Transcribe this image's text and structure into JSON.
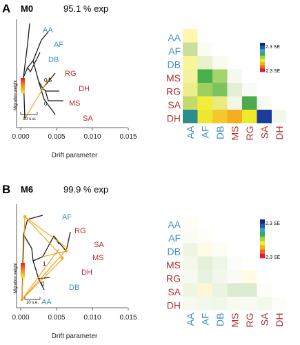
{
  "colors": {
    "pop_blue": "#3f8fbf",
    "pop_red": "#b32d2d",
    "tree": "#1a1a1a",
    "migration": "#f5a51a",
    "axis": "#222222"
  },
  "scale": [
    "#0b2a8a",
    "#1f5fa8",
    "#3b9fd1",
    "#33b24a",
    "#9ed24a",
    "#f2ea2a",
    "#f5b021",
    "#ef6a1f",
    "#e51e21"
  ],
  "panel_a": {
    "letter": "A",
    "model": "M0",
    "variance": "95.1 % exp",
    "xaxis": {
      "ticks": [
        "0.000",
        "0.005",
        "0.010",
        "0.015"
      ],
      "label": "Drift parameter"
    },
    "se_label": "10 s.e.",
    "weight_label": "Migration weight",
    "weight_value": "0.5",
    "weight_zero": "0",
    "tips": [
      {
        "name": "AA",
        "group": "blue"
      },
      {
        "name": "AF",
        "group": "blue"
      },
      {
        "name": "DB",
        "group": "blue"
      },
      {
        "name": "RG",
        "group": "red"
      },
      {
        "name": "DH",
        "group": "red"
      },
      {
        "name": "MS",
        "group": "red"
      },
      {
        "name": "SA",
        "group": "red"
      }
    ],
    "matrix": {
      "rows": [
        "AA",
        "AF",
        "DB",
        "MS",
        "RG",
        "SA",
        "DH"
      ],
      "cols": [
        "AA",
        "AF",
        "DB",
        "MS",
        "RG",
        "SA",
        "DH"
      ],
      "row_groups": [
        "blue",
        "blue",
        "blue",
        "red",
        "red",
        "red",
        "red"
      ],
      "col_groups": [
        "blue",
        "blue",
        "blue",
        "red",
        "red",
        "red",
        "red"
      ],
      "cells": [
        [
          "#fff6b0",
          null,
          null,
          null,
          null,
          null,
          null
        ],
        [
          "#c8e09a",
          "#fafdf2",
          null,
          null,
          null,
          null,
          null
        ],
        [
          "#fbf59a",
          "#e8f2cc",
          "#f8fbee",
          null,
          null,
          null,
          null
        ],
        [
          "#f4f29a",
          "#46b14b",
          "#a6d36d",
          "#f5faef",
          null,
          null,
          null
        ],
        [
          "#ecee8c",
          "#9fcf5e",
          "#7cc45c",
          "#e2efd5",
          "#f8fbf3",
          null,
          null
        ],
        [
          "#c4db6c",
          "#f2ec3a",
          "#eaeb7c",
          "#f3f7e7",
          "#4eab4c",
          "#f7fbef",
          null
        ],
        [
          "#2a8f8c",
          "#f0e531",
          "#f6c82a",
          "#f4ae1f",
          "#eee92a",
          "#1d3b9a",
          "#f4f8ec"
        ]
      ],
      "legend_top": "2.3 SE",
      "legend_bottom": "-2.3 SE"
    }
  },
  "panel_b": {
    "letter": "B",
    "model": "M6",
    "variance": "99.9 % exp",
    "xaxis": {
      "ticks": [
        "0.000",
        "0.005",
        "0.010",
        "0.015"
      ],
      "label": "Drift parameter"
    },
    "se_label": "10 s.e.",
    "weight_label": "Migration weight",
    "weight_value": "1",
    "weight_zero": "0",
    "tips": [
      {
        "name": "AF",
        "group": "blue"
      },
      {
        "name": "RG",
        "group": "red"
      },
      {
        "name": "SA",
        "group": "red"
      },
      {
        "name": "MS",
        "group": "red"
      },
      {
        "name": "DH",
        "group": "red"
      },
      {
        "name": "DB",
        "group": "blue"
      },
      {
        "name": "AA",
        "group": "blue"
      }
    ],
    "matrix": {
      "rows": [
        "AA",
        "AF",
        "DB",
        "MS",
        "RG",
        "SA",
        "DH"
      ],
      "cols": [
        "AA",
        "AF",
        "DB",
        "MS",
        "RG",
        "SA",
        "DH"
      ],
      "row_groups": [
        "blue",
        "blue",
        "blue",
        "red",
        "red",
        "red",
        "red"
      ],
      "col_groups": [
        "blue",
        "blue",
        "blue",
        "red",
        "red",
        "red",
        "red"
      ],
      "cells": [
        [
          "#fefef6",
          null,
          null,
          null,
          null,
          null,
          null
        ],
        [
          "#fbfdf5",
          "#fefef8",
          null,
          null,
          null,
          null,
          null
        ],
        [
          "#eef6e2",
          "#fffbe6",
          "#fcfdf6",
          null,
          null,
          null,
          null
        ],
        [
          "#f3f8ea",
          "#e4f0da",
          "#eef6e6",
          "#fcfdf8",
          null,
          null,
          null
        ],
        [
          "#f6faf0",
          "#e8f2e0",
          "#f1f7ea",
          "#f9fcf5",
          "#fffbe4",
          null,
          null
        ],
        [
          "#eef6e2",
          "#fff6d6",
          "#eaf4e0",
          "#dcecd0",
          "#dcecd0",
          "#fcfdf7",
          null
        ],
        [
          "#f5f9ee",
          "#f3f8ec",
          "#f1f7ea",
          "#f6faf1",
          "#f8fbf4",
          "#f4f9ee",
          "#fcfdf8"
        ]
      ],
      "legend_top": "2.3 SE",
      "legend_bottom": "-2.3 SE"
    }
  }
}
